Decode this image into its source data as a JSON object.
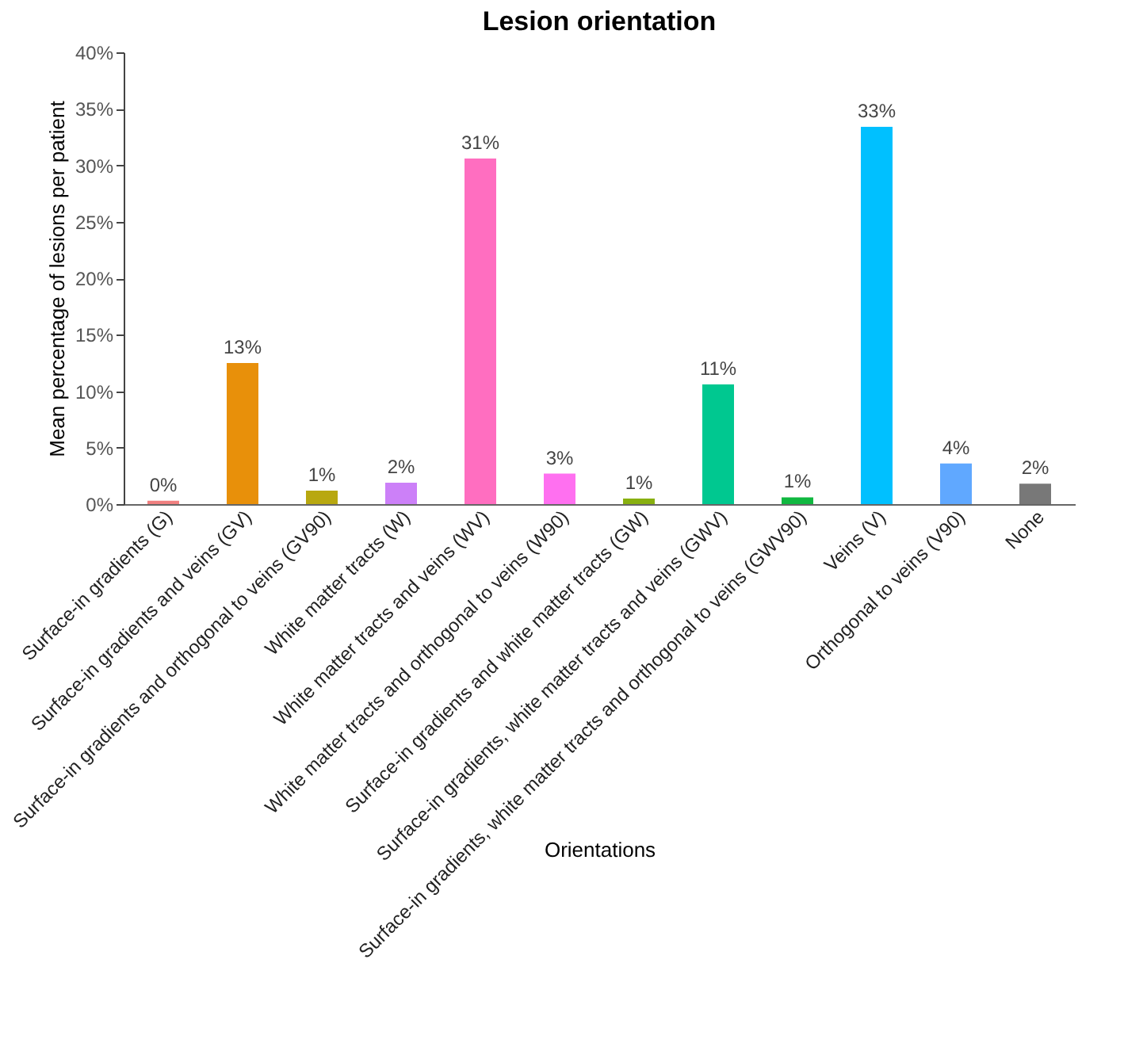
{
  "chart_data": {
    "type": "bar",
    "title": "Lesion orientation",
    "xlabel": "Orientations",
    "ylabel": "Mean percentage of lesions per patient",
    "categories": [
      "Surface-in gradients (G)",
      "Surface-in gradients and veins (GV)",
      "Surface-in gradients and orthogonal to veins (GV90)",
      "White matter tracts (W)",
      "White matter tracts and veins (WV)",
      "White matter tracts and orthogonal to veins (W90)",
      "Surface-in gradients and white matter tracts (GW)",
      "Surface-in gradients, white matter tracts and veins (GWV)",
      "Surface-in gradients, white matter tracts and orthogonal to veins (GWV90)",
      "Veins (V)",
      "Orthogonal to veins (V90)",
      "None"
    ],
    "values": [
      0.3,
      12.5,
      1.2,
      1.9,
      30.6,
      2.7,
      0.5,
      10.6,
      0.6,
      33.4,
      3.6,
      1.8
    ],
    "value_labels": [
      "0%",
      "13%",
      "1%",
      "2%",
      "31%",
      "3%",
      "1%",
      "11%",
      "1%",
      "33%",
      "4%",
      "2%"
    ],
    "colors": [
      "#f08080",
      "#e8900a",
      "#b8a810",
      "#cc80f8",
      "#ff6ec0",
      "#ff70f0",
      "#88b010",
      "#00c890",
      "#10b840",
      "#00c0ff",
      "#60a8ff",
      "#787878"
    ],
    "ylim": [
      0,
      40
    ],
    "yticks": [
      {
        "value": 0,
        "label": "0%"
      },
      {
        "value": 5,
        "label": "5%"
      },
      {
        "value": 10,
        "label": "10%"
      },
      {
        "value": 15,
        "label": "15%"
      },
      {
        "value": 20,
        "label": "20%"
      },
      {
        "value": 25,
        "label": "25%"
      },
      {
        "value": 30,
        "label": "30%"
      },
      {
        "value": 35,
        "label": "35%"
      },
      {
        "value": 40,
        "label": "40%"
      }
    ],
    "grid": false,
    "legend": false
  }
}
